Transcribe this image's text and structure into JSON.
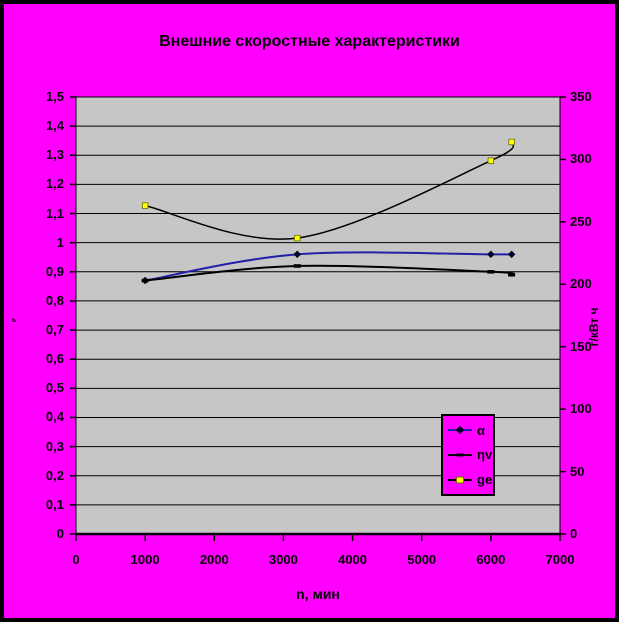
{
  "window": {
    "background_color": "#FF00FF",
    "border_color": "#000000",
    "plot_area_color": "#C6C6C6",
    "gridline_color": "#000000"
  },
  "chart_data": {
    "type": "line",
    "title": "Внешние скоростные характеристики",
    "xlabel": "n, мин",
    "ylabel_left": "ь",
    "ylabel_right": "г/кВт ч",
    "grid": true,
    "legend_position": "inside-lower-right",
    "x": [
      1000,
      3200,
      6000,
      6300
    ],
    "x_axis": {
      "min": 0,
      "max": 7000,
      "tick_labels": [
        "0",
        "1000",
        "2000",
        "3000",
        "4000",
        "5000",
        "6000",
        "7000"
      ]
    },
    "y_left": {
      "min": 0,
      "max": 1.5,
      "tick_labels": [
        "0",
        "0,1",
        "0,2",
        "0,3",
        "0,4",
        "0,5",
        "0,6",
        "0,7",
        "0,8",
        "0,9",
        "1",
        "1,1",
        "1,2",
        "1,3",
        "1,4",
        "1,5"
      ]
    },
    "y_right": {
      "min": 0,
      "max": 350,
      "tick_labels": [
        "0",
        "50",
        "100",
        "150",
        "200",
        "250",
        "300",
        "350"
      ]
    },
    "series": [
      {
        "name": "α",
        "axis": "left",
        "values": [
          0.87,
          0.96,
          0.96,
          0.96
        ],
        "color": "#2121A8",
        "width": 2,
        "marker": "diamond",
        "marker_color": "#000022",
        "marker_border": "#000022"
      },
      {
        "name": "ηv",
        "axis": "left",
        "values": [
          0.87,
          0.92,
          0.9,
          0.89
        ],
        "color": "#000000",
        "width": 2,
        "marker": "dash",
        "marker_color": "#000000",
        "marker_border": "#000000"
      },
      {
        "name": "ge",
        "axis": "right",
        "values": [
          263,
          237,
          299,
          314
        ],
        "color": "#000000",
        "width": 1.5,
        "marker": "square",
        "marker_color": "#FFFF00",
        "marker_border": "#6B6B00"
      }
    ]
  }
}
